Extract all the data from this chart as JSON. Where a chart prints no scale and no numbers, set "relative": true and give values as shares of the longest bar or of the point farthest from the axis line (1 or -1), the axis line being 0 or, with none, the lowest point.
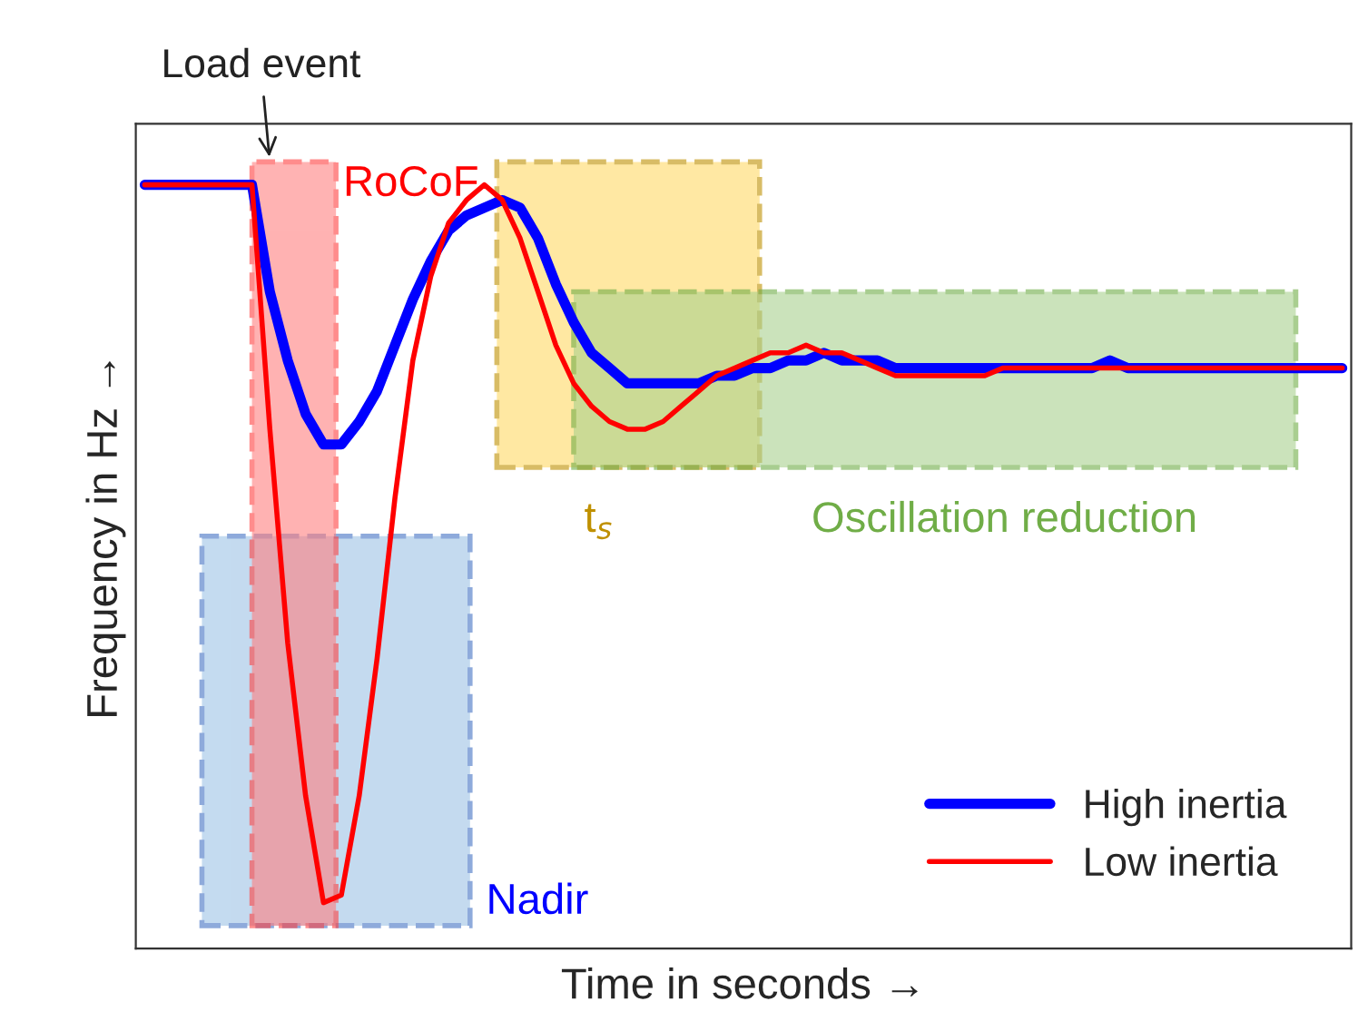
{
  "chart_data": {
    "type": "line",
    "relative": true,
    "xlabel": "Time in seconds →",
    "ylabel": "Frequency in Hz →",
    "categories": [
      null,
      null,
      null,
      null,
      null,
      null,
      null,
      null,
      null,
      null,
      null,
      null,
      null,
      null,
      null,
      null,
      null,
      null,
      null,
      null,
      null,
      null,
      null,
      null,
      null,
      null,
      null,
      null,
      null,
      null,
      null,
      null,
      null,
      null,
      null,
      null,
      null,
      null,
      null,
      null,
      null,
      null,
      null,
      null,
      null,
      null,
      null,
      null,
      null,
      null,
      null,
      null,
      null,
      null,
      null,
      null,
      null,
      null,
      null,
      null,
      null,
      null,
      null,
      null,
      null,
      null,
      null,
      null
    ],
    "series": [
      {
        "name": "High inertia",
        "color": "#0000ff",
        "values": [
          1.0,
          1.0,
          1.0,
          1.0,
          1.0,
          1.0,
          1.0,
          0.86,
          0.77,
          0.7,
          0.66,
          0.66,
          0.69,
          0.73,
          0.79,
          0.85,
          0.9,
          0.94,
          0.96,
          0.97,
          0.98,
          0.97,
          0.93,
          0.87,
          0.82,
          0.78,
          0.76,
          0.74,
          0.74,
          0.74,
          0.74,
          0.74,
          0.75,
          0.75,
          0.76,
          0.76,
          0.77,
          0.77,
          0.78,
          0.77,
          0.77,
          0.77,
          0.76,
          0.76,
          0.76,
          0.76,
          0.76,
          0.76,
          0.76,
          0.76,
          0.76,
          0.76,
          0.76,
          0.76,
          0.77,
          0.76,
          0.76,
          0.76,
          0.76,
          0.76,
          0.76,
          0.76,
          0.76,
          0.76,
          0.76,
          0.76,
          0.76,
          0.76
        ]
      },
      {
        "name": "Low inertia",
        "color": "#ff0000",
        "values": [
          1.0,
          1.0,
          1.0,
          1.0,
          1.0,
          1.0,
          1.0,
          0.68,
          0.4,
          0.2,
          0.06,
          0.07,
          0.2,
          0.38,
          0.59,
          0.77,
          0.88,
          0.95,
          0.98,
          1.0,
          0.98,
          0.93,
          0.86,
          0.79,
          0.74,
          0.71,
          0.69,
          0.68,
          0.68,
          0.69,
          0.71,
          0.73,
          0.75,
          0.76,
          0.77,
          0.78,
          0.78,
          0.79,
          0.78,
          0.78,
          0.77,
          0.76,
          0.75,
          0.75,
          0.75,
          0.75,
          0.75,
          0.75,
          0.76,
          0.76,
          0.76,
          0.76,
          0.76,
          0.76,
          0.76,
          0.76,
          0.76,
          0.76,
          0.76,
          0.76,
          0.76,
          0.76,
          0.76,
          0.76,
          0.76,
          0.76,
          0.76,
          0.76
        ]
      }
    ],
    "annotations": [
      "Load event",
      "RoCoF",
      "t$_{s}$",
      "Oscillation reduction",
      "Nadir"
    ],
    "legend": "bottom right",
    "grid": false,
    "line_style": "solid",
    "marker": "none"
  }
}
